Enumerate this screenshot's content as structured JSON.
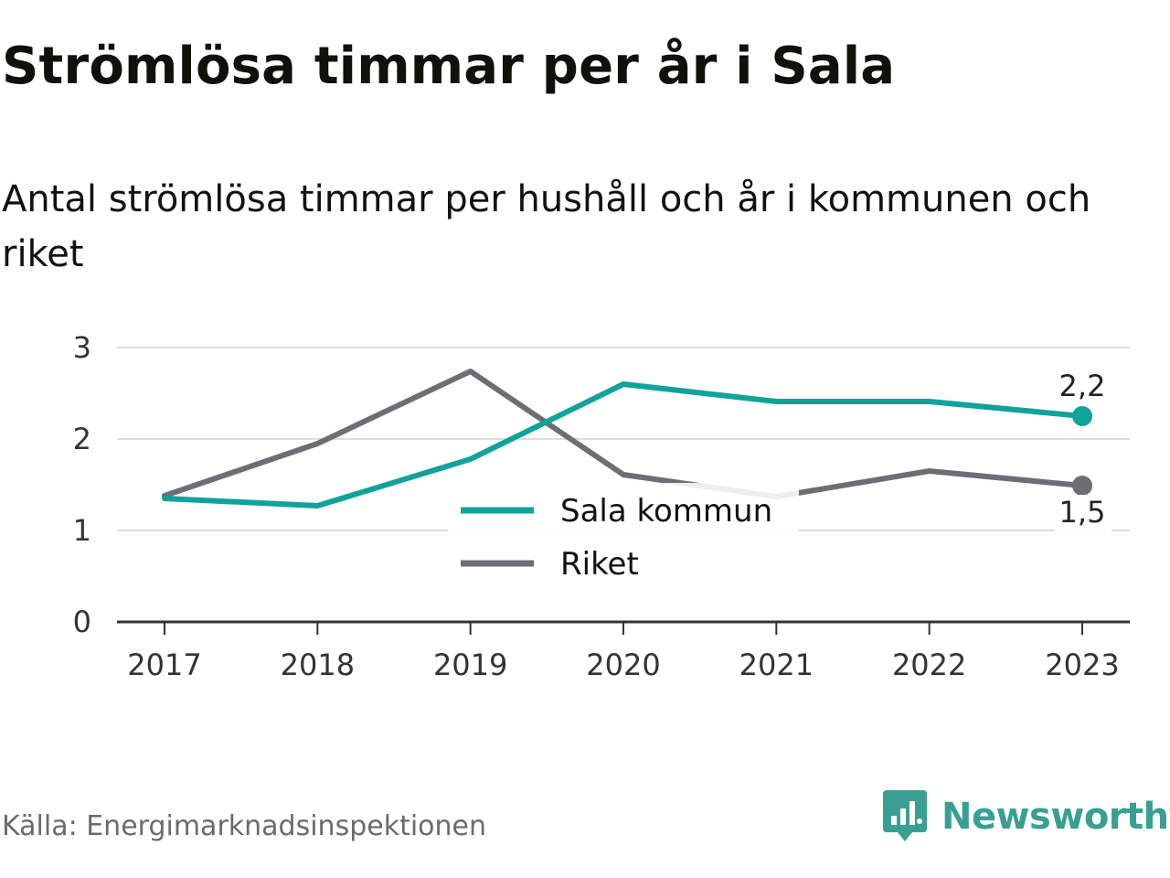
{
  "header": {
    "title": "Strömlösa timmar per år i Sala",
    "subtitle": "Antal strömlösa timmar per hushåll och år i kommunen och riket"
  },
  "footer": {
    "source": "Källa: Energimarknadsinspektionen",
    "brand": "Newsworthy",
    "brand_icon": "newsworthy-logo-icon",
    "brand_color": "#3a9f93"
  },
  "chart_data": {
    "type": "line",
    "title": "Strömlösa timmar per år i Sala",
    "subtitle": "Antal strömlösa timmar per hushåll och år i kommunen och riket",
    "xlabel": "",
    "ylabel": "",
    "categories": [
      "2017",
      "2018",
      "2019",
      "2020",
      "2021",
      "2022",
      "2023"
    ],
    "ylim": [
      0,
      3
    ],
    "yticks": [
      0,
      1,
      2,
      3
    ],
    "ytick_labels": [
      "0",
      "1",
      "2",
      "3"
    ],
    "grid": true,
    "legend_position": "center",
    "series": [
      {
        "name": "Sala kommun",
        "color": "#0fa39a",
        "values": [
          1.35,
          1.27,
          1.78,
          2.6,
          2.41,
          2.41,
          2.25
        ],
        "end_label": "2,2"
      },
      {
        "name": "Riket",
        "color": "#6e6d75",
        "values": [
          1.38,
          1.95,
          2.74,
          1.61,
          1.37,
          1.65,
          1.49
        ],
        "end_label": "1,5"
      }
    ]
  }
}
